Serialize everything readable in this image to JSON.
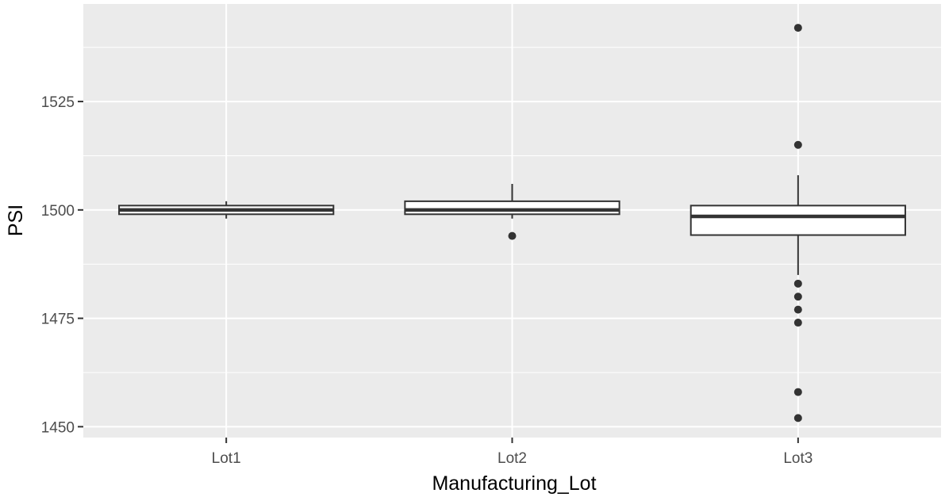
{
  "chart_data": {
    "type": "boxplot",
    "xlabel": "Manufacturing_Lot",
    "ylabel": "PSI",
    "categories": [
      "Lot1",
      "Lot2",
      "Lot3"
    ],
    "ylim": [
      1447.5,
      1547.5
    ],
    "yticks": [
      1450,
      1475,
      1500,
      1525
    ],
    "grid": true,
    "legend": "none",
    "boxes": [
      {
        "category": "Lot1",
        "q1": 1499,
        "median": 1500,
        "q3": 1501,
        "whisker_low": 1498,
        "whisker_high": 1502,
        "outliers": []
      },
      {
        "category": "Lot2",
        "q1": 1499,
        "median": 1500,
        "q3": 1502,
        "whisker_low": 1498,
        "whisker_high": 1506,
        "outliers": [
          1494
        ]
      },
      {
        "category": "Lot3",
        "q1": 1494.2,
        "median": 1498.5,
        "q3": 1501,
        "whisker_low": 1485,
        "whisker_high": 1508,
        "outliers": [
          1542,
          1515,
          1483,
          1480,
          1477,
          1474,
          1458,
          1452
        ]
      }
    ],
    "colors": {
      "panel": "#ebebeb",
      "grid": "#ffffff",
      "box_fill": "#ffffff",
      "box_line": "#333333",
      "tick_text": "#4d4d4d",
      "title_text": "#000000"
    }
  }
}
